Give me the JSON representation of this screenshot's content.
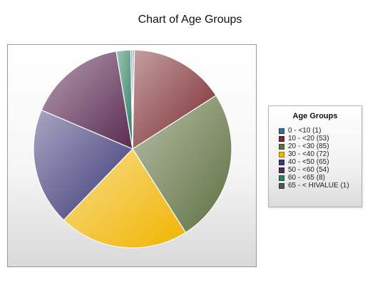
{
  "chart_data": {
    "type": "pie",
    "title": "Chart of Age Groups",
    "legend_title": "Age Groups",
    "legend_position": "right",
    "slices": [
      {
        "label": "0 - <10 (1)",
        "value": 1,
        "color": "#3a6b9a"
      },
      {
        "label": "10 - <20 (53)",
        "value": 53,
        "color": "#7a2a2e"
      },
      {
        "label": "20 - <30 (85)",
        "value": 85,
        "color": "#5e7040"
      },
      {
        "label": "30 - <40 (72)",
        "value": 72,
        "color": "#f0b400"
      },
      {
        "label": "40 - <50 (65)",
        "value": 65,
        "color": "#3e3878"
      },
      {
        "label": "50 - <60 (54)",
        "value": 54,
        "color": "#5a2a52"
      },
      {
        "label": "60 - <65 (8)",
        "value": 8,
        "color": "#2a8060"
      },
      {
        "label": "65 - < HIVALUE (1)",
        "value": 1,
        "color": "#555555"
      }
    ]
  }
}
